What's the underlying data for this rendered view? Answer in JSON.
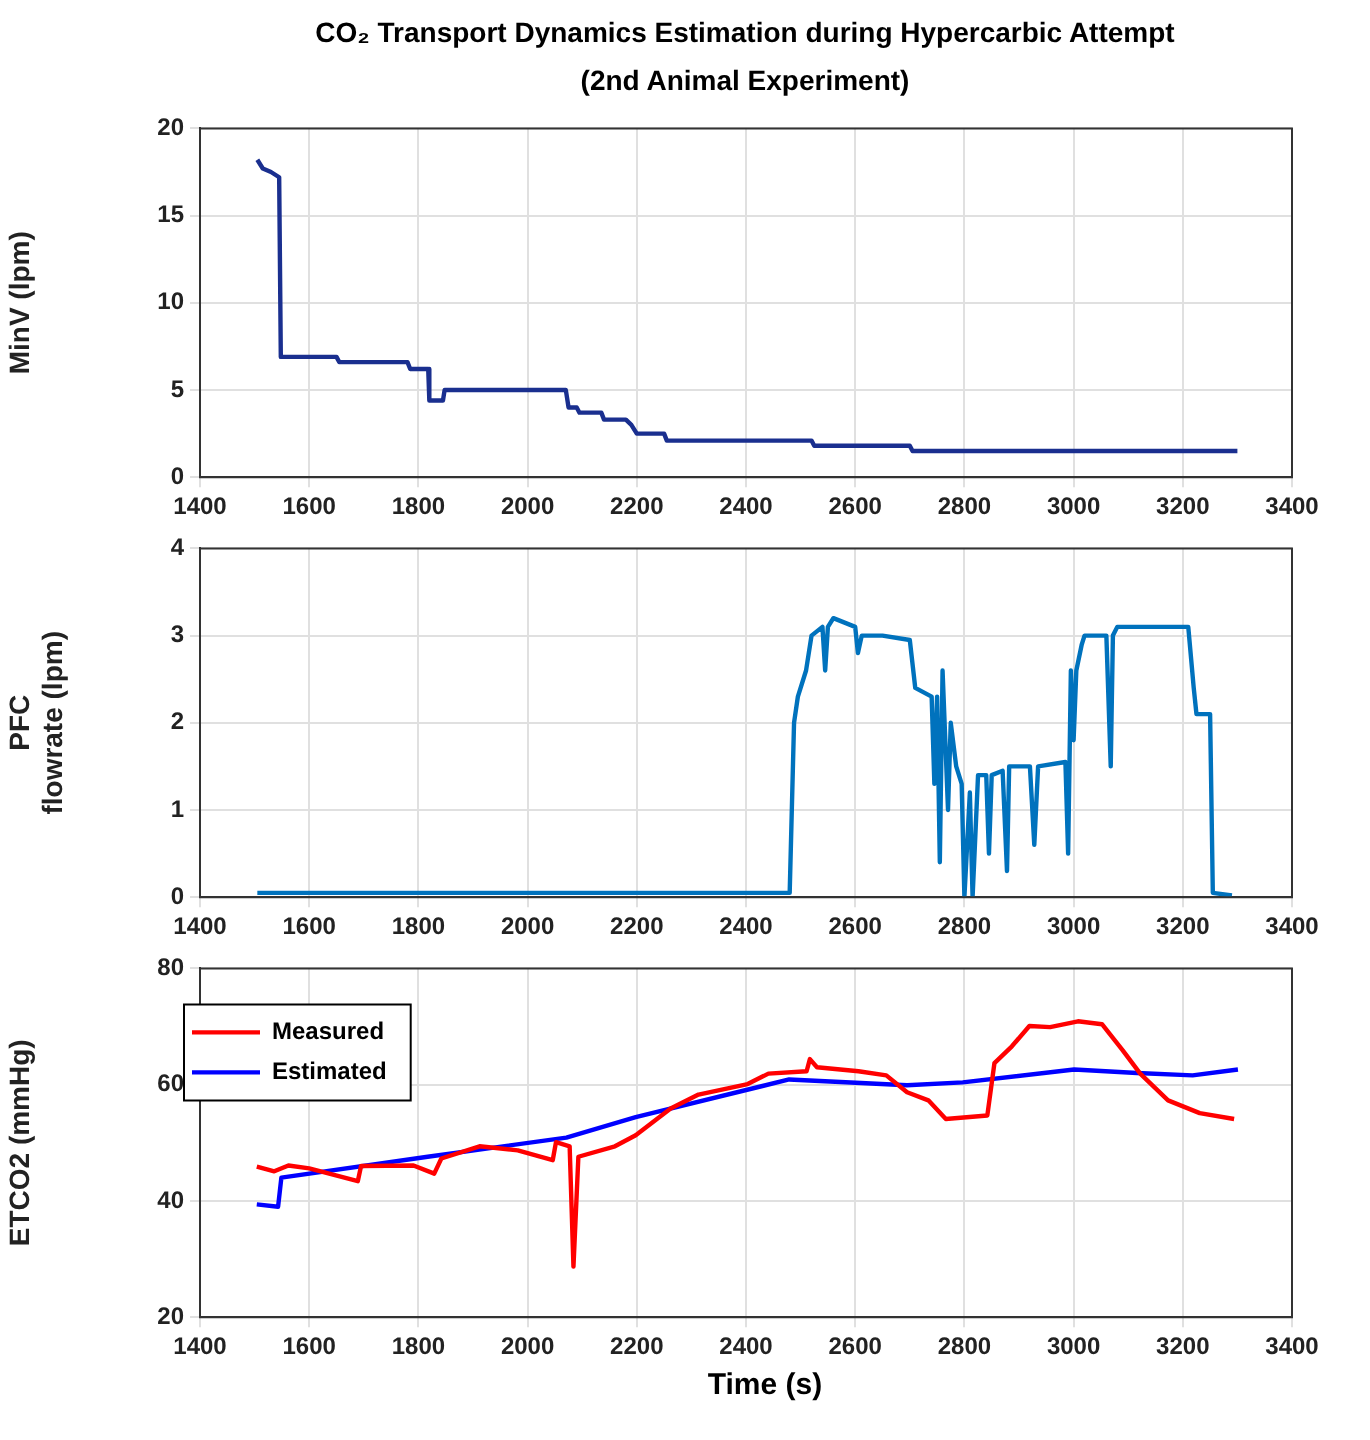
{
  "chart_data": [
    {
      "type": "line",
      "title": "CO₂ Transport Dynamics Estimation during Hypercarbic Attempt\n(2nd Animal Experiment)",
      "ylabel": "MinV (lpm)",
      "xlim": [
        1400,
        3400
      ],
      "xticks": [
        1400,
        1600,
        1800,
        2000,
        2200,
        2400,
        2600,
        2800,
        3000,
        3200,
        3400
      ],
      "ylim": [
        0,
        20
      ],
      "yticks": [
        0,
        5,
        10,
        15,
        20
      ],
      "grid": true,
      "legend": false,
      "marker": "none",
      "line_style": "solid",
      "series": [
        {
          "color": "#1a2f8f",
          "x": [
            1505,
            1515,
            1530,
            1545,
            1548,
            1650,
            1655,
            1780,
            1785,
            1818,
            1820,
            1845,
            1848,
            2070,
            2075,
            2090,
            2095,
            2135,
            2140,
            2180,
            2190,
            2200,
            2250,
            2255,
            2520,
            2525,
            2700,
            2705,
            3300
          ],
          "values": [
            18.2,
            17.7,
            17.5,
            17.2,
            6.9,
            6.9,
            6.6,
            6.6,
            6.2,
            6.2,
            4.4,
            4.4,
            5.0,
            5.0,
            4.0,
            4.0,
            3.7,
            3.7,
            3.3,
            3.3,
            3.0,
            2.5,
            2.5,
            2.1,
            2.1,
            1.8,
            1.8,
            1.5,
            1.5
          ]
        }
      ]
    },
    {
      "type": "line",
      "ylabel": "PFC\nflowrate (lpm)",
      "xlim": [
        1400,
        3400
      ],
      "xticks": [
        1400,
        1600,
        1800,
        2000,
        2200,
        2400,
        2600,
        2800,
        3000,
        3200,
        3400
      ],
      "ylim": [
        0,
        4
      ],
      "yticks": [
        0,
        1,
        2,
        3,
        4
      ],
      "grid": true,
      "legend": false,
      "marker": "none",
      "line_style": "solid",
      "series": [
        {
          "color": "#0072bd",
          "x": [
            1505,
            2480,
            2488,
            2495,
            2510,
            2520,
            2540,
            2545,
            2550,
            2560,
            2600,
            2605,
            2612,
            2650,
            2700,
            2710,
            2740,
            2745,
            2750,
            2755,
            2760,
            2770,
            2775,
            2785,
            2795,
            2800,
            2810,
            2815,
            2825,
            2840,
            2845,
            2850,
            2870,
            2878,
            2882,
            2920,
            2928,
            2935,
            2985,
            2990,
            2995,
            3000,
            3005,
            3015,
            3020,
            3060,
            3068,
            3072,
            3080,
            3210,
            3220,
            3225,
            3250,
            3255,
            3290
          ],
          "values": [
            0.05,
            0.05,
            2.0,
            2.3,
            2.6,
            3.0,
            3.1,
            2.6,
            3.1,
            3.2,
            3.1,
            2.8,
            3.0,
            3.0,
            2.95,
            2.4,
            2.3,
            1.3,
            2.3,
            0.4,
            2.6,
            1.0,
            2.0,
            1.5,
            1.3,
            0.0,
            1.2,
            0.0,
            1.4,
            1.4,
            0.5,
            1.4,
            1.45,
            0.3,
            1.5,
            1.5,
            0.6,
            1.5,
            1.55,
            0.5,
            2.6,
            1.8,
            2.6,
            2.9,
            3.0,
            3.0,
            1.5,
            3.0,
            3.1,
            3.1,
            2.4,
            2.1,
            2.1,
            0.05,
            0.02
          ]
        }
      ]
    },
    {
      "type": "line",
      "ylabel": "ETCO2 (mmHg)",
      "xlabel": "Time (s)",
      "xlim": [
        1400,
        3400
      ],
      "xticks": [
        1400,
        1600,
        1800,
        2000,
        2200,
        2400,
        2600,
        2800,
        3000,
        3200,
        3400
      ],
      "ylim": [
        20,
        80
      ],
      "yticks": [
        20,
        40,
        60,
        80
      ],
      "grid": true,
      "legend": "top left",
      "marker": "none",
      "line_style": "solid",
      "series": [
        {
          "name": "Measured",
          "color": "#ff0000",
          "x": [
            1504,
            1536,
            1562,
            1600,
            1689,
            1695,
            1791,
            1829,
            1842,
            1912,
            1982,
            2046,
            2052,
            2077,
            2084,
            2093,
            2160,
            2198,
            2262,
            2313,
            2403,
            2441,
            2511,
            2517,
            2530,
            2606,
            2657,
            2695,
            2734,
            2766,
            2842,
            2855,
            2887,
            2919,
            2957,
            3008,
            3052,
            3090,
            3122,
            3173,
            3231,
            3294
          ],
          "values": [
            45.9,
            45.1,
            46.1,
            45.6,
            43.4,
            46.0,
            46.1,
            44.7,
            47.3,
            49.4,
            48.7,
            47.0,
            50.1,
            49.4,
            28.7,
            47.6,
            49.4,
            51.3,
            55.9,
            58.3,
            60.1,
            61.9,
            62.3,
            64.4,
            63.0,
            62.3,
            61.6,
            58.7,
            57.3,
            54.1,
            54.7,
            63.7,
            66.6,
            70.1,
            69.9,
            70.9,
            70.4,
            65.9,
            61.9,
            57.3,
            55.1,
            54.1
          ]
        },
        {
          "name": "Estimated",
          "color": "#0000ff",
          "x": [
            1504,
            1543,
            1549,
            1817,
            2071,
            2198,
            2479,
            2695,
            2797,
            3001,
            3116,
            3218,
            3301
          ],
          "values": [
            39.4,
            39.0,
            44.0,
            47.6,
            50.9,
            54.4,
            60.9,
            59.9,
            60.4,
            62.6,
            62.0,
            61.6,
            62.6
          ]
        }
      ]
    }
  ]
}
